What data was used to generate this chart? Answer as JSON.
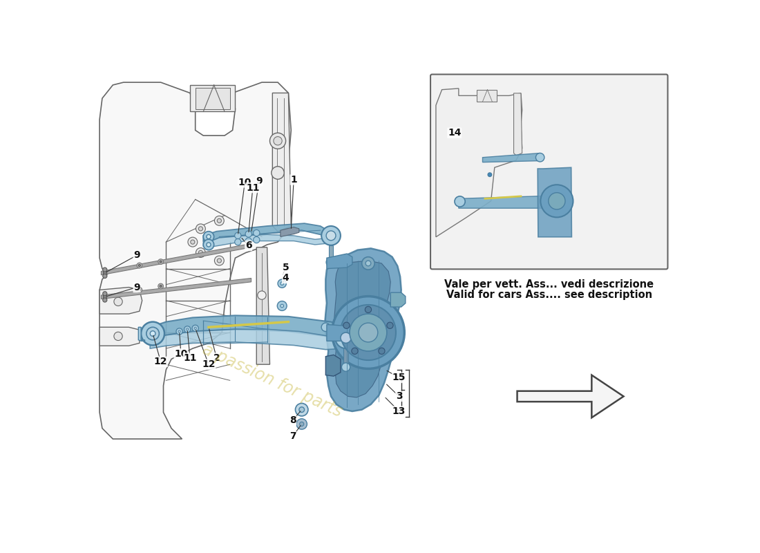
{
  "background_color": "#ffffff",
  "inset_text_line1": "Vale per vett. Ass... vedi descrizione",
  "inset_text_line2": "Valid for cars Ass.... see description",
  "watermark": "a passion for parts",
  "blue_part": "#7baec8",
  "blue_part_dark": "#4a7fa0",
  "blue_part_light": "#a8cde0",
  "line_gray": "#555555",
  "line_dark": "#333333",
  "inset_bg": "#f0f0f0",
  "label_font": 10,
  "arrow_color": "#222222",
  "knuckle_blue": "#6b9fc0",
  "frame_color": "#666666",
  "highlight_yellow": "#d4c84a"
}
